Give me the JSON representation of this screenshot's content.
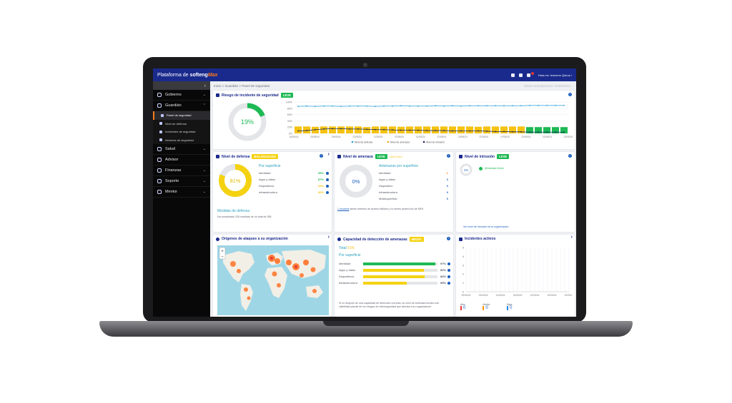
{
  "app": {
    "brand_prefix": "Plataforma de",
    "brand_name": "softeng",
    "brand_suffix": "Max",
    "user_greeting": "Hola mx: irrserron Quiros !"
  },
  "sidebar": {
    "items": [
      {
        "label": "Gobierno",
        "icon": "dashed-square-icon"
      },
      {
        "label": "Guardián",
        "icon": "shield-icon"
      },
      {
        "label": "Salud",
        "icon": "heart-icon"
      },
      {
        "label": "Advisor",
        "icon": "compass-icon"
      },
      {
        "label": "Finanzas",
        "icon": "money-icon"
      },
      {
        "label": "Soporte",
        "icon": "support-icon"
      },
      {
        "label": "Mentor",
        "icon": "mentor-icon"
      }
    ],
    "sub_items": [
      {
        "label": "Panel de seguridad",
        "active": true
      },
      {
        "label": "Nivel de defensa",
        "active": false
      },
      {
        "label": "Incidentes de seguridad",
        "active": false
      },
      {
        "label": "Informes de seguridad",
        "active": false
      }
    ]
  },
  "breadcrumb": "Inicio > Guardián > Panel de seguridad",
  "breadcrumb_right": "Última actualización: 24/05/2024",
  "risk": {
    "title": "Riesgo de incidente de seguridad",
    "badge": "LEVE",
    "percent_label": "19%",
    "percent": 0.19,
    "y_ticks": [
      "100%",
      "80%",
      "60%",
      "40%",
      "20%",
      "0%"
    ],
    "x_dates": [
      "24/06/24",
      "20/05/24",
      "19/05/24",
      "22/05/24",
      "11/05/24",
      "02/05/24",
      "14/05/24",
      "22/05/24",
      "23/05/24",
      "22/05/24",
      "17/05/24",
      "21/05/24",
      "22/05/24",
      "22/05/24"
    ],
    "legend": [
      "Nivel de defensa",
      "Nivel de amenaza",
      "Nivel de intrusión"
    ],
    "defense_line": [
      86,
      87,
      86,
      87,
      87,
      86,
      87,
      87,
      87,
      86,
      87,
      87,
      88,
      87,
      87,
      87,
      88,
      87,
      88,
      87,
      88,
      88,
      88,
      88,
      88,
      88,
      88,
      89,
      89,
      89,
      89,
      89
    ],
    "threat_bars": [
      22,
      22,
      21,
      22,
      22,
      22,
      22,
      22,
      20,
      22,
      22,
      22,
      21,
      22,
      22,
      22,
      22,
      22,
      22,
      22,
      22,
      21,
      22,
      22,
      22,
      22,
      22,
      20,
      20,
      20,
      20,
      20
    ],
    "intrusion_line": [
      8,
      9,
      12,
      14,
      15,
      15,
      14,
      14,
      13,
      12,
      12,
      11,
      10,
      10,
      10,
      9,
      9,
      9,
      8,
      8,
      8,
      8,
      7,
      6,
      6,
      5,
      5,
      4,
      4,
      4,
      4,
      4
    ]
  },
  "defense": {
    "title": "Nivel de defensa",
    "badge": "BALANCEADO",
    "percent_label": "81%",
    "percent": 0.81,
    "subtitle": "Por superficie",
    "rows": [
      {
        "label": "Identidad",
        "value": "35%"
      },
      {
        "label": "Apps y datos",
        "value": "87%"
      },
      {
        "label": "Dispositivos",
        "value": "69%"
      },
      {
        "label": "Infraestructura",
        "value": "90%"
      }
    ],
    "footer_title": "Medidas de defensa",
    "footer_text": "Ha completado 228 medidas de un total de 285"
  },
  "threat": {
    "title": "Nivel de amenaza",
    "badge": "LEVE",
    "badge2": "Nivel cero",
    "percent_label": "0%",
    "subtitle": "Amenazas por superficie",
    "rows": [
      {
        "label": "Identidad",
        "value": "1"
      },
      {
        "label": "Apps y datos",
        "value": "0"
      },
      {
        "label": "Dispositivo",
        "value": "0"
      },
      {
        "label": "Infraestructura",
        "value": "0"
      },
      {
        "label": "Multisuperficie",
        "value": "0"
      }
    ],
    "footer_link": "1 usuarios",
    "footer_text": "tienen intentos de acceso fallidos y no tienen protección de MFA"
  },
  "intrusion": {
    "title": "Nivel de intrusión",
    "badge": "LEVE",
    "percent_label": "1%",
    "user_label": "@mamaci.hiluns",
    "footer": "Ver nivel de intrusión de la organización"
  },
  "origins": {
    "title": "Orígenes de ataques a su organización",
    "zoom_in": "+",
    "zoom_out": "−"
  },
  "detection": {
    "title": "Capacidad de detección de amenazas",
    "badge": "MEDIA",
    "total_label": "Total",
    "total_value": "51%",
    "subtitle": "Por superficie",
    "rows": [
      {
        "label": "Identidad",
        "value": "97%",
        "level": 0.97,
        "color": "#1db954"
      },
      {
        "label": "Apps y datos",
        "value": "82%",
        "level": 0.82,
        "color": "#f5d211"
      },
      {
        "label": "Dispositivos",
        "value": "83%",
        "level": 0.83,
        "color": "#f5d211"
      },
      {
        "label": "Infraestructura",
        "value": "59%",
        "level": 0.59,
        "color": "#f5d211"
      }
    ],
    "footer_text": "Si no dispone de una capacidad de detección correcta, su nivel de amenaza tendrá una visibilidad parcial de los riesgos de ciberseguridad que afectan a su organización."
  },
  "incidents": {
    "title": "Incidentes activos",
    "y_ticks": [
      "5",
      "4",
      "3",
      "2",
      "1",
      "0"
    ],
    "x_dates": [
      "20/05/24",
      "23/05/24",
      "21/05/24",
      "19/05/24",
      "12/05/24",
      "22/05/24",
      "22/05/24"
    ],
    "counts": [
      {
        "label": "Alta",
        "value": "0",
        "color": "#e53935"
      },
      {
        "label": "Media",
        "value": "0",
        "color": "#ff9800"
      },
      {
        "label": "Baja",
        "value": "0",
        "color": "#1e88e5"
      }
    ]
  },
  "colors": {
    "brand": "#1a2a8c",
    "accent_orange": "#ff7a1a",
    "green": "#1db954",
    "yellow": "#f5d211",
    "teal": "#2a9fbf"
  }
}
